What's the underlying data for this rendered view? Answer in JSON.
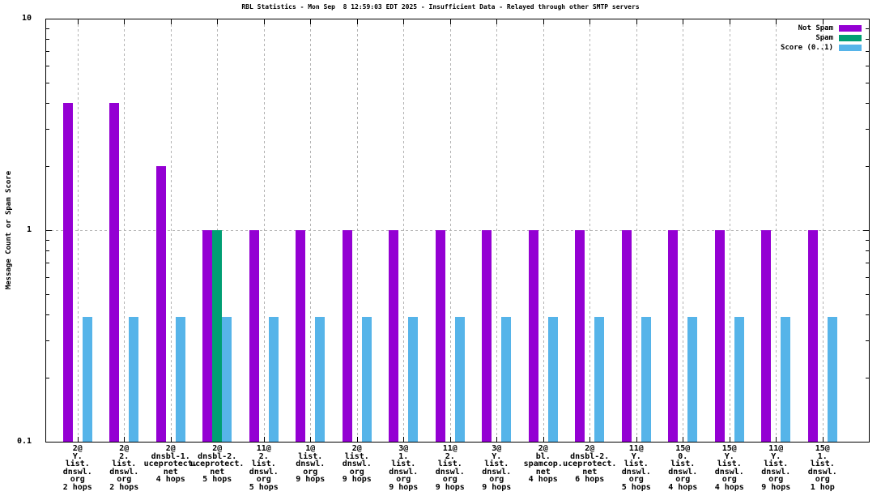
{
  "chart_data": {
    "type": "bar",
    "title": "RBL Statistics - Mon Sep  8 12:59:03 EDT 2025 - Insufficient Data - Relayed through other SMTP servers",
    "xlabel": "",
    "ylabel": "Message Count or Spam Score",
    "y_scale": "log",
    "ylim": [
      0.1,
      10
    ],
    "y_tick_labels": [
      "10",
      "1",
      "0.1"
    ],
    "grid": "vertical dashed lines at each category; horizontal dashed line at y=1",
    "legend_position": "top-right",
    "categories": [
      "2@\nY.\nlist.\ndnswl.\norg\n2 hops",
      "2@\n2.\nlist.\ndnswl.\norg\n2 hops",
      "2@\ndnsbl-1.\nuceprotect.\nnet\n4 hops",
      "2@\ndnsbl-2.\nuceprotect.\nnet\n5 hops",
      "11@\n2.\nlist.\ndnswl.\norg\n5 hops",
      "1@\nlist.\ndnswl.\norg\n9 hops",
      "2@\nlist.\ndnswl.\norg\n9 hops",
      "3@\n1.\nlist.\ndnswl.\norg\n9 hops",
      "11@\n2.\nlist.\ndnswl.\norg\n9 hops",
      "3@\nY.\nlist.\ndnswl.\norg\n9 hops",
      "2@\nbl.\nspamcop.\nnet\n4 hops",
      "2@\ndnsbl-2.\nuceprotect.\nnet\n6 hops",
      "11@\nY.\nlist.\ndnswl.\norg\n5 hops",
      "15@\n0.\nlist.\ndnswl.\norg\n4 hops",
      "15@\nY.\nlist.\ndnswl.\norg\n4 hops",
      "11@\nY.\nlist.\ndnswl.\norg\n9 hops",
      "15@\n1.\nlist.\ndnswl.\norg\n1 hop"
    ],
    "series": [
      {
        "name": "Not Spam",
        "color": "#9400D3",
        "values": [
          4,
          4,
          2,
          1,
          1,
          1,
          1,
          1,
          1,
          1,
          1,
          1,
          1,
          1,
          1,
          1,
          1
        ]
      },
      {
        "name": "Spam",
        "color": "#009E73",
        "values": [
          0,
          0,
          0,
          1,
          0,
          0,
          0,
          0,
          0,
          0,
          0,
          0,
          0,
          0,
          0,
          0,
          0
        ]
      },
      {
        "name": "Score (0..1)",
        "color": "#56B4E9",
        "values": [
          0.39,
          0.39,
          0.39,
          0.39,
          0.39,
          0.39,
          0.39,
          0.39,
          0.39,
          0.39,
          0.39,
          0.39,
          0.39,
          0.39,
          0.39,
          0.39,
          0.39
        ]
      }
    ]
  }
}
